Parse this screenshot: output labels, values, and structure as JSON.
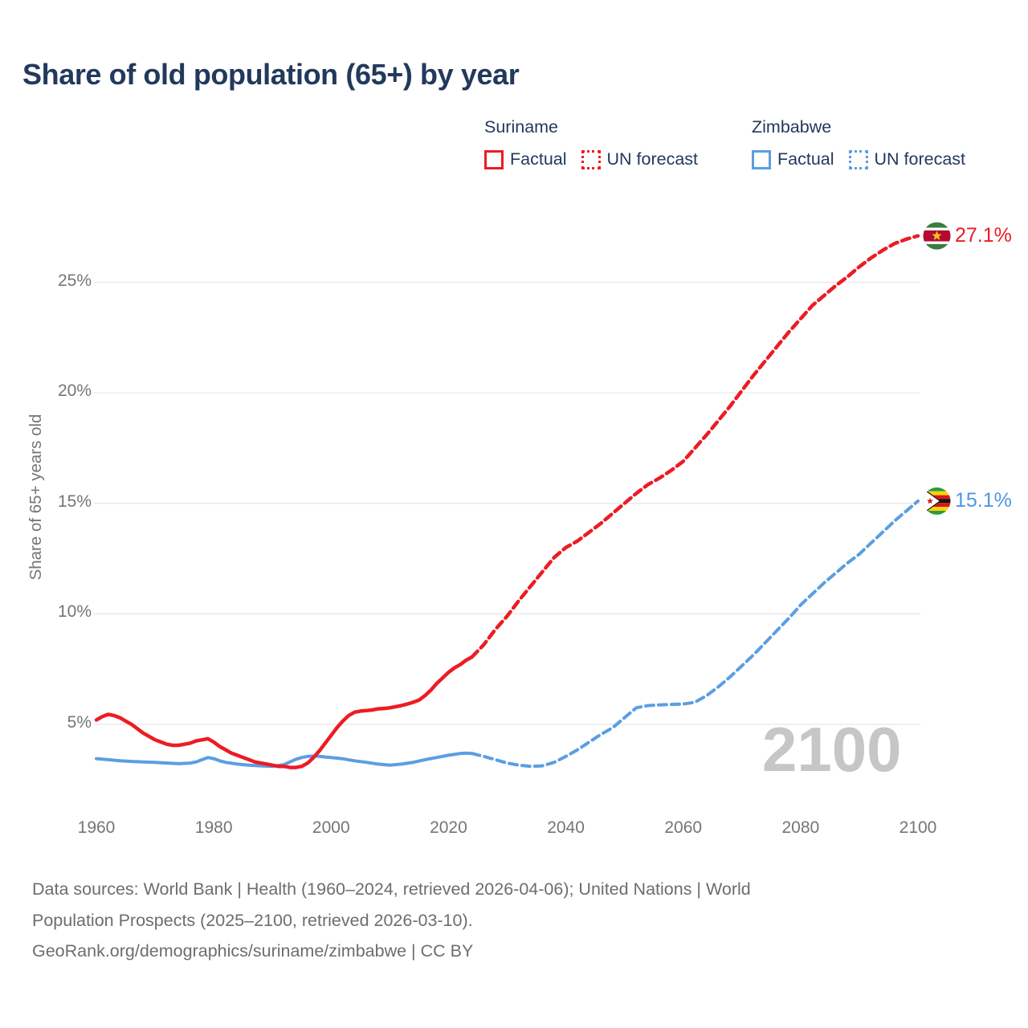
{
  "title": "Share of old population (65+) by year",
  "legend": {
    "groups": [
      {
        "name": "Suriname",
        "color": "#ec1c24",
        "items": [
          {
            "label": "Factual",
            "style": "solid"
          },
          {
            "label": "UN forecast",
            "style": "dotted"
          }
        ]
      },
      {
        "name": "Zimbabwe",
        "color": "#5b9ee2",
        "items": [
          {
            "label": "Factual",
            "style": "solid"
          },
          {
            "label": "UN forecast",
            "style": "dotted"
          }
        ]
      }
    ]
  },
  "chart_data": {
    "type": "line",
    "title": "Share of old population (65+) by year",
    "xlabel": "",
    "ylabel": "Share of 65+ years old",
    "xlim": [
      1960,
      2100
    ],
    "ylim": [
      2.5,
      28
    ],
    "grid": "horizontal-only",
    "grid_color": "#e8e8e8",
    "watermark": "2100",
    "x_ticks": [
      {
        "value": 1960,
        "label": "1960"
      },
      {
        "value": 1980,
        "label": "1980"
      },
      {
        "value": 2000,
        "label": "2000"
      },
      {
        "value": 2020,
        "label": "2020"
      },
      {
        "value": 2040,
        "label": "2040"
      },
      {
        "value": 2060,
        "label": "2060"
      },
      {
        "value": 2080,
        "label": "2080"
      },
      {
        "value": 2100,
        "label": "2100"
      }
    ],
    "y_ticks": [
      {
        "value": 5,
        "label": "5%"
      },
      {
        "value": 10,
        "label": "10%"
      },
      {
        "value": 15,
        "label": "15%"
      },
      {
        "value": 20,
        "label": "20%"
      },
      {
        "value": 25,
        "label": "25%"
      }
    ],
    "series": [
      {
        "id": "zimbabwe-factual",
        "name": "Zimbabwe Factual",
        "color": "#5b9ee2",
        "style": "solid",
        "width": 4,
        "points": [
          [
            1960,
            3.45
          ],
          [
            1962,
            3.4
          ],
          [
            1964,
            3.35
          ],
          [
            1966,
            3.32
          ],
          [
            1968,
            3.3
          ],
          [
            1970,
            3.28
          ],
          [
            1972,
            3.25
          ],
          [
            1974,
            3.22
          ],
          [
            1976,
            3.25
          ],
          [
            1977,
            3.3
          ],
          [
            1978,
            3.4
          ],
          [
            1979,
            3.5
          ],
          [
            1980,
            3.45
          ],
          [
            1981,
            3.35
          ],
          [
            1982,
            3.28
          ],
          [
            1984,
            3.2
          ],
          [
            1986,
            3.15
          ],
          [
            1988,
            3.12
          ],
          [
            1990,
            3.1
          ],
          [
            1992,
            3.18
          ],
          [
            1993,
            3.3
          ],
          [
            1994,
            3.42
          ],
          [
            1995,
            3.5
          ],
          [
            1996,
            3.55
          ],
          [
            1997,
            3.56
          ],
          [
            1998,
            3.55
          ],
          [
            1999,
            3.52
          ],
          [
            2000,
            3.5
          ],
          [
            2002,
            3.44
          ],
          [
            2004,
            3.35
          ],
          [
            2006,
            3.28
          ],
          [
            2008,
            3.2
          ],
          [
            2010,
            3.15
          ],
          [
            2012,
            3.2
          ],
          [
            2014,
            3.28
          ],
          [
            2016,
            3.4
          ],
          [
            2018,
            3.5
          ],
          [
            2020,
            3.6
          ],
          [
            2022,
            3.68
          ],
          [
            2023,
            3.7
          ],
          [
            2024,
            3.68
          ]
        ]
      },
      {
        "id": "zimbabwe-forecast",
        "name": "Zimbabwe UN forecast",
        "color": "#5b9ee2",
        "style": "dashed",
        "width": 4,
        "points": [
          [
            2024,
            3.68
          ],
          [
            2026,
            3.55
          ],
          [
            2028,
            3.4
          ],
          [
            2030,
            3.25
          ],
          [
            2032,
            3.15
          ],
          [
            2034,
            3.1
          ],
          [
            2036,
            3.12
          ],
          [
            2038,
            3.28
          ],
          [
            2040,
            3.55
          ],
          [
            2042,
            3.85
          ],
          [
            2044,
            4.2
          ],
          [
            2046,
            4.55
          ],
          [
            2048,
            4.85
          ],
          [
            2050,
            5.3
          ],
          [
            2052,
            5.75
          ],
          [
            2054,
            5.85
          ],
          [
            2056,
            5.88
          ],
          [
            2058,
            5.9
          ],
          [
            2060,
            5.92
          ],
          [
            2062,
            6.0
          ],
          [
            2064,
            6.3
          ],
          [
            2066,
            6.7
          ],
          [
            2068,
            7.15
          ],
          [
            2070,
            7.65
          ],
          [
            2072,
            8.15
          ],
          [
            2074,
            8.7
          ],
          [
            2076,
            9.25
          ],
          [
            2078,
            9.8
          ],
          [
            2080,
            10.4
          ],
          [
            2082,
            10.9
          ],
          [
            2084,
            11.4
          ],
          [
            2086,
            11.85
          ],
          [
            2088,
            12.3
          ],
          [
            2090,
            12.7
          ],
          [
            2092,
            13.2
          ],
          [
            2094,
            13.7
          ],
          [
            2096,
            14.2
          ],
          [
            2098,
            14.65
          ],
          [
            2100,
            15.1
          ]
        ]
      },
      {
        "id": "suriname-factual",
        "name": "Suriname Factual",
        "color": "#ec1c24",
        "style": "solid",
        "width": 4.5,
        "points": [
          [
            1960,
            5.2
          ],
          [
            1961,
            5.35
          ],
          [
            1962,
            5.45
          ],
          [
            1963,
            5.4
          ],
          [
            1964,
            5.3
          ],
          [
            1965,
            5.15
          ],
          [
            1966,
            5.0
          ],
          [
            1967,
            4.8
          ],
          [
            1968,
            4.6
          ],
          [
            1969,
            4.45
          ],
          [
            1970,
            4.3
          ],
          [
            1971,
            4.2
          ],
          [
            1972,
            4.1
          ],
          [
            1973,
            4.05
          ],
          [
            1974,
            4.05
          ],
          [
            1975,
            4.1
          ],
          [
            1976,
            4.15
          ],
          [
            1977,
            4.25
          ],
          [
            1978,
            4.3
          ],
          [
            1979,
            4.35
          ],
          [
            1980,
            4.2
          ],
          [
            1981,
            4.0
          ],
          [
            1982,
            3.85
          ],
          [
            1983,
            3.7
          ],
          [
            1984,
            3.6
          ],
          [
            1985,
            3.5
          ],
          [
            1986,
            3.4
          ],
          [
            1987,
            3.3
          ],
          [
            1988,
            3.25
          ],
          [
            1989,
            3.2
          ],
          [
            1990,
            3.15
          ],
          [
            1991,
            3.1
          ],
          [
            1992,
            3.1
          ],
          [
            1993,
            3.05
          ],
          [
            1994,
            3.05
          ],
          [
            1995,
            3.1
          ],
          [
            1996,
            3.25
          ],
          [
            1997,
            3.5
          ],
          [
            1998,
            3.8
          ],
          [
            1999,
            4.15
          ],
          [
            2000,
            4.5
          ],
          [
            2001,
            4.85
          ],
          [
            2002,
            5.15
          ],
          [
            2003,
            5.4
          ],
          [
            2004,
            5.55
          ],
          [
            2005,
            5.6
          ],
          [
            2006,
            5.62
          ],
          [
            2007,
            5.65
          ],
          [
            2008,
            5.7
          ],
          [
            2009,
            5.72
          ],
          [
            2010,
            5.75
          ],
          [
            2011,
            5.8
          ],
          [
            2012,
            5.85
          ],
          [
            2013,
            5.92
          ],
          [
            2014,
            6.0
          ],
          [
            2015,
            6.1
          ],
          [
            2016,
            6.3
          ],
          [
            2017,
            6.55
          ],
          [
            2018,
            6.85
          ],
          [
            2019,
            7.1
          ],
          [
            2020,
            7.35
          ],
          [
            2021,
            7.55
          ],
          [
            2022,
            7.7
          ],
          [
            2023,
            7.9
          ],
          [
            2024,
            8.05
          ]
        ]
      },
      {
        "id": "suriname-forecast",
        "name": "Suriname UN forecast",
        "color": "#ec1c24",
        "style": "dashed",
        "width": 4.5,
        "points": [
          [
            2024,
            8.05
          ],
          [
            2026,
            8.6
          ],
          [
            2028,
            9.3
          ],
          [
            2030,
            9.9
          ],
          [
            2032,
            10.6
          ],
          [
            2034,
            11.25
          ],
          [
            2036,
            11.9
          ],
          [
            2038,
            12.55
          ],
          [
            2040,
            13.0
          ],
          [
            2042,
            13.3
          ],
          [
            2044,
            13.7
          ],
          [
            2046,
            14.1
          ],
          [
            2048,
            14.55
          ],
          [
            2050,
            15.0
          ],
          [
            2052,
            15.45
          ],
          [
            2054,
            15.85
          ],
          [
            2056,
            16.15
          ],
          [
            2058,
            16.5
          ],
          [
            2060,
            16.9
          ],
          [
            2062,
            17.5
          ],
          [
            2064,
            18.1
          ],
          [
            2066,
            18.75
          ],
          [
            2068,
            19.4
          ],
          [
            2070,
            20.1
          ],
          [
            2072,
            20.8
          ],
          [
            2074,
            21.45
          ],
          [
            2076,
            22.1
          ],
          [
            2078,
            22.75
          ],
          [
            2080,
            23.35
          ],
          [
            2082,
            23.95
          ],
          [
            2084,
            24.4
          ],
          [
            2086,
            24.85
          ],
          [
            2088,
            25.25
          ],
          [
            2090,
            25.7
          ],
          [
            2092,
            26.1
          ],
          [
            2094,
            26.45
          ],
          [
            2096,
            26.75
          ],
          [
            2098,
            26.95
          ],
          [
            2100,
            27.1
          ]
        ]
      }
    ],
    "end_labels": [
      {
        "flag": "suriname",
        "text": "27.1%",
        "value": 27.1,
        "color": "#ec1c24"
      },
      {
        "flag": "zimbabwe",
        "text": "15.1%",
        "value": 15.1,
        "color": "#4f97e0"
      }
    ]
  },
  "footer": {
    "lines": [
      "Data sources: World Bank | Health (1960–2024, retrieved 2026-04-06); United Nations | World",
      "Population Prospects (2025–2100, retrieved 2026-03-10).",
      "GeoRank.org/demographics/suriname/zimbabwe | CC BY"
    ]
  }
}
